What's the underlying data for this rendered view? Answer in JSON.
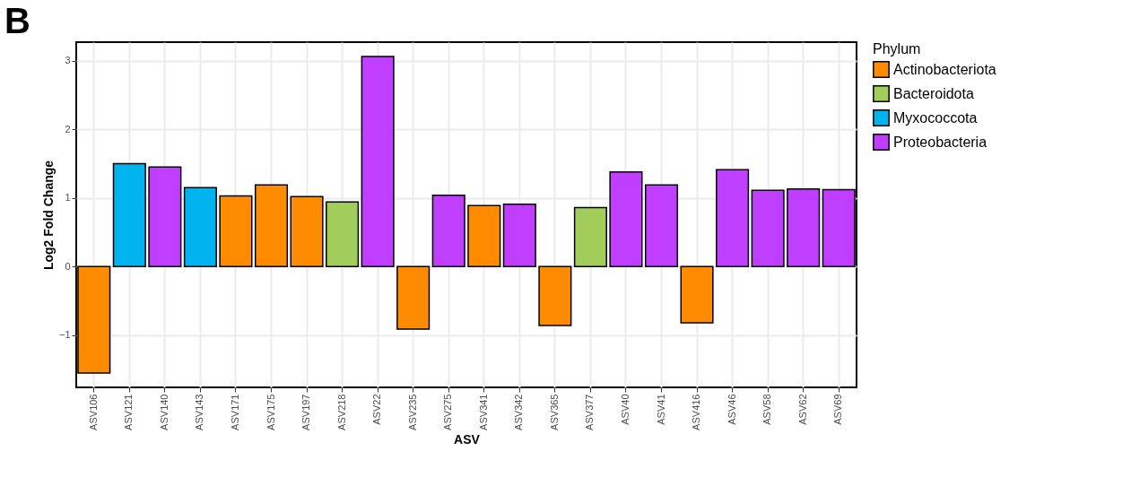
{
  "chart_data": {
    "type": "bar",
    "title": "B",
    "xlabel": "ASV",
    "ylabel": "Log2 Fold Change",
    "legend_title": "Phylum",
    "categories": [
      "ASV106",
      "ASV121",
      "ASV140",
      "ASV143",
      "ASV171",
      "ASV175",
      "ASV197",
      "ASV218",
      "ASV22",
      "ASV235",
      "ASV275",
      "ASV341",
      "ASV342",
      "ASV365",
      "ASV377",
      "ASV40",
      "ASV41",
      "ASV416",
      "ASV46",
      "ASV58",
      "ASV62",
      "ASV69"
    ],
    "series": [
      {
        "name": "Actinobacteriota",
        "color": "#ff8c00",
        "values": [
          -1.55,
          null,
          null,
          null,
          1.03,
          1.19,
          1.02,
          null,
          null,
          -0.91,
          null,
          0.89,
          null,
          -0.86,
          null,
          null,
          null,
          -0.82,
          null,
          null,
          null,
          null
        ]
      },
      {
        "name": "Bacteroidota",
        "color": "#a2cd5a",
        "values": [
          null,
          null,
          null,
          null,
          null,
          null,
          null,
          0.94,
          null,
          null,
          null,
          null,
          null,
          null,
          0.86,
          null,
          null,
          null,
          null,
          null,
          null,
          null
        ]
      },
      {
        "name": "Myxococcota",
        "color": "#00b2ee",
        "values": [
          null,
          1.5,
          null,
          1.15,
          null,
          null,
          null,
          null,
          null,
          null,
          null,
          null,
          null,
          null,
          null,
          null,
          null,
          null,
          null,
          null,
          null,
          null
        ]
      },
      {
        "name": "Proteobacteria",
        "color": "#bf3eff",
        "values": [
          null,
          null,
          1.45,
          null,
          null,
          null,
          null,
          null,
          3.06,
          null,
          1.04,
          null,
          0.91,
          null,
          null,
          1.38,
          1.19,
          null,
          1.41,
          1.11,
          1.13,
          1.12
        ]
      }
    ],
    "ylim": [
      -1.76,
      3.27
    ],
    "yticks": [
      -1,
      0,
      1,
      2,
      3
    ],
    "grid": true,
    "legend": "right"
  }
}
